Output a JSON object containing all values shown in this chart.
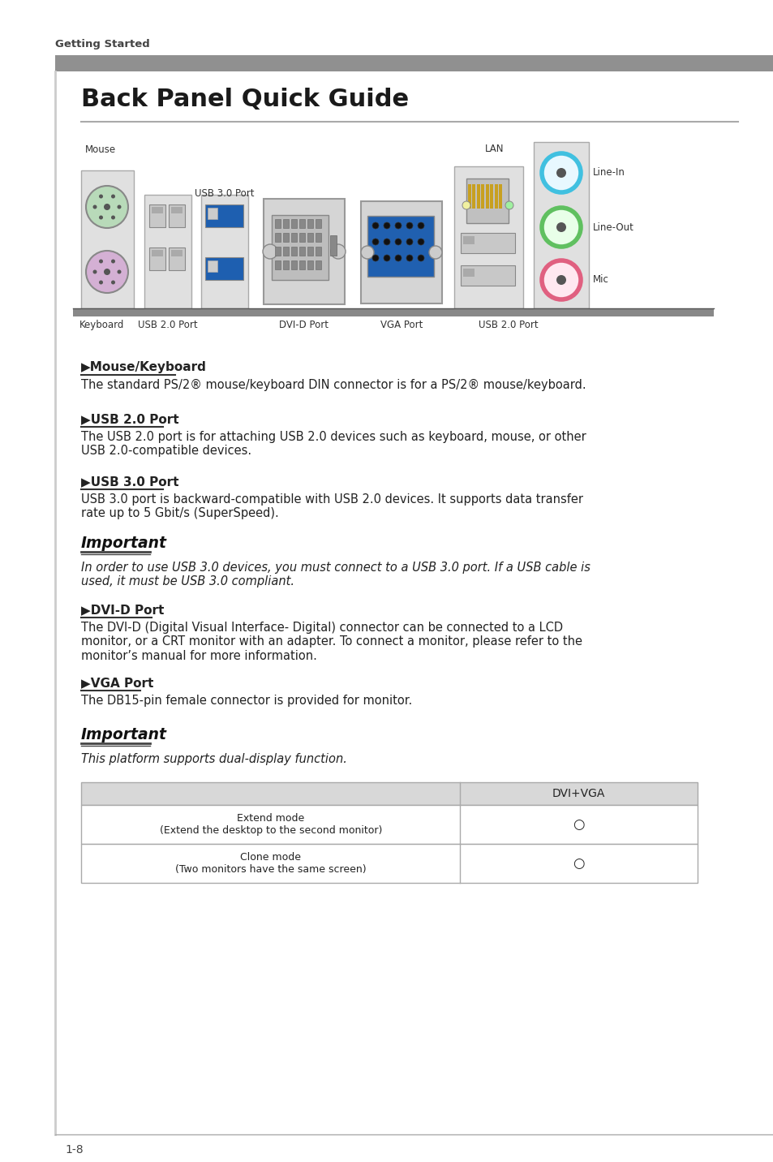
{
  "page_bg": "#ffffff",
  "title": "Back Panel Quick Guide",
  "getting_started": "Getting Started",
  "section1_header": "Mouse/Keyboard",
  "section1_text": "The standard PS/2® mouse/keyboard DIN connector is for a PS/2® mouse/keyboard.",
  "section2_header": "USB 2.0 Port",
  "section2_text": "The USB 2.0 port is for attaching USB 2.0 devices such as keyboard, mouse, or other\nUSB 2.0-compatible devices.",
  "section3_header": "USB 3.0 Port",
  "section3_text": "USB 3.0 port is backward-compatible with USB 2.0 devices. It supports data transfer\nrate up to 5 Gbit/s (SuperSpeed).",
  "important1_text": "In order to use USB 3.0 devices, you must connect to a USB 3.0 port. If a USB cable is\nused, it must be USB 3.0 compliant.",
  "section4_header": "DVI-D Port",
  "section4_text": "The DVI-D (Digital Visual Interface- Digital) connector can be connected to a LCD\nmonitor, or a CRT monitor with an adapter. To connect a monitor, please refer to the\nmonitor’s manual for more information.",
  "section5_header": "VGA Port",
  "section5_text": "The DB15-pin female connector is provided for monitor.",
  "important2_text": "This platform supports dual-display function.",
  "table_header": "DVI+VGA",
  "table_row1_left": "Extend mode\n(Extend the desktop to the second monitor)",
  "table_row1_right": "○",
  "table_row2_left": "Clone mode\n(Two monitors have the same screen)",
  "table_row2_right": "○",
  "page_num": "1-8"
}
